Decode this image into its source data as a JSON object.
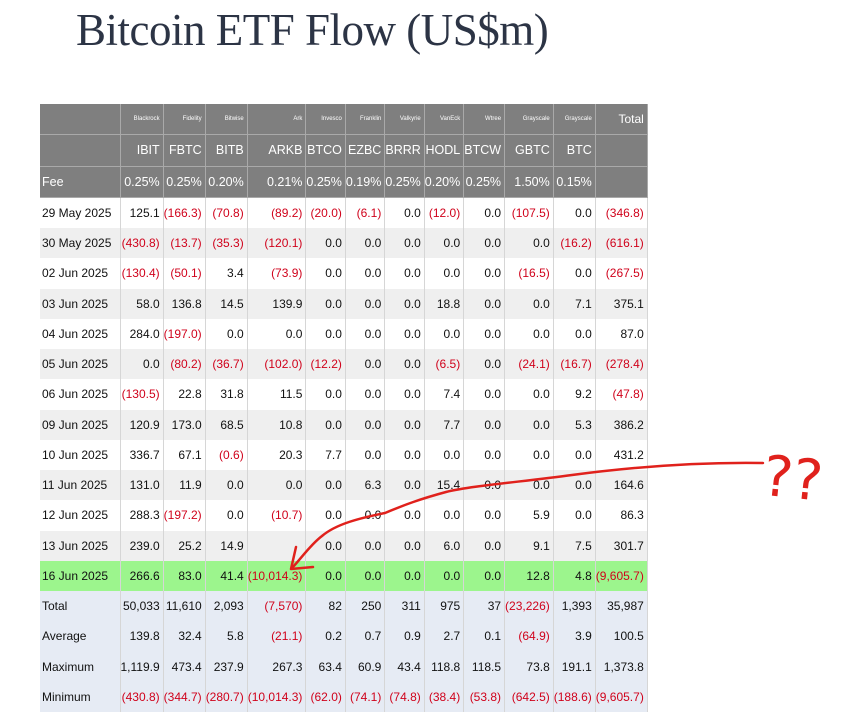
{
  "title": "Bitcoin ETF Flow (US$m)",
  "issuers": [
    "Blackrock",
    "Fidelity",
    "Bitwise",
    "Ark",
    "Invesco",
    "Franklin",
    "Valkyrie",
    "VanEck",
    "Wtree",
    "Grayscale",
    "Grayscale"
  ],
  "total_label": "Total",
  "tickers": [
    "IBIT",
    "FBTC",
    "BITB",
    "ARKB",
    "BTCO",
    "EZBC",
    "BRRR",
    "HODL",
    "BTCW",
    "GBTC",
    "BTC"
  ],
  "fee_label": "Fee",
  "fees": [
    "0.25%",
    "0.25%",
    "0.20%",
    "0.21%",
    "0.25%",
    "0.19%",
    "0.25%",
    "0.20%",
    "0.25%",
    "1.50%",
    "0.15%"
  ],
  "rows": [
    {
      "date": "29 May 2025",
      "values": [
        "125.1",
        "(166.3)",
        "(70.8)",
        "(89.2)",
        "(20.0)",
        "(6.1)",
        "0.0",
        "(12.0)",
        "0.0",
        "(107.5)",
        "0.0"
      ],
      "total": "(346.8)"
    },
    {
      "date": "30 May 2025",
      "values": [
        "(430.8)",
        "(13.7)",
        "(35.3)",
        "(120.1)",
        "0.0",
        "0.0",
        "0.0",
        "0.0",
        "0.0",
        "0.0",
        "(16.2)"
      ],
      "total": "(616.1)"
    },
    {
      "date": "02 Jun 2025",
      "values": [
        "(130.4)",
        "(50.1)",
        "3.4",
        "(73.9)",
        "0.0",
        "0.0",
        "0.0",
        "0.0",
        "0.0",
        "(16.5)",
        "0.0"
      ],
      "total": "(267.5)"
    },
    {
      "date": "03 Jun 2025",
      "values": [
        "58.0",
        "136.8",
        "14.5",
        "139.9",
        "0.0",
        "0.0",
        "0.0",
        "18.8",
        "0.0",
        "0.0",
        "7.1"
      ],
      "total": "375.1"
    },
    {
      "date": "04 Jun 2025",
      "values": [
        "284.0",
        "(197.0)",
        "0.0",
        "0.0",
        "0.0",
        "0.0",
        "0.0",
        "0.0",
        "0.0",
        "0.0",
        "0.0"
      ],
      "total": "87.0"
    },
    {
      "date": "05 Jun 2025",
      "values": [
        "0.0",
        "(80.2)",
        "(36.7)",
        "(102.0)",
        "(12.2)",
        "0.0",
        "0.0",
        "(6.5)",
        "0.0",
        "(24.1)",
        "(16.7)"
      ],
      "total": "(278.4)"
    },
    {
      "date": "06 Jun 2025",
      "values": [
        "(130.5)",
        "22.8",
        "31.8",
        "11.5",
        "0.0",
        "0.0",
        "0.0",
        "7.4",
        "0.0",
        "0.0",
        "9.2"
      ],
      "total": "(47.8)"
    },
    {
      "date": "09 Jun 2025",
      "values": [
        "120.9",
        "173.0",
        "68.5",
        "10.8",
        "0.0",
        "0.0",
        "0.0",
        "7.7",
        "0.0",
        "0.0",
        "5.3"
      ],
      "total": "386.2"
    },
    {
      "date": "10 Jun 2025",
      "values": [
        "336.7",
        "67.1",
        "(0.6)",
        "20.3",
        "7.7",
        "0.0",
        "0.0",
        "0.0",
        "0.0",
        "0.0",
        "0.0"
      ],
      "total": "431.2"
    },
    {
      "date": "11 Jun 2025",
      "values": [
        "131.0",
        "11.9",
        "0.0",
        "0.0",
        "0.0",
        "6.3",
        "0.0",
        "15.4",
        "0.0",
        "0.0",
        "0.0"
      ],
      "total": "164.6"
    },
    {
      "date": "12 Jun 2025",
      "values": [
        "288.3",
        "(197.2)",
        "0.0",
        "(10.7)",
        "0.0",
        "0.0",
        "0.0",
        "0.0",
        "0.0",
        "5.9",
        "0.0"
      ],
      "total": "86.3"
    },
    {
      "date": "13 Jun 2025",
      "values": [
        "239.0",
        "25.2",
        "14.9",
        "",
        "0.0",
        "0.0",
        "0.0",
        "6.0",
        "0.0",
        "9.1",
        "7.5"
      ],
      "total": "301.7"
    },
    {
      "date": "16 Jun 2025",
      "values": [
        "266.6",
        "83.0",
        "41.4",
        "(10,014.3)",
        "0.0",
        "0.0",
        "0.0",
        "0.0",
        "0.0",
        "12.8",
        "4.8"
      ],
      "total": "(9,605.7)",
      "highlight": true
    }
  ],
  "summary": [
    {
      "label": "Total",
      "values": [
        "50,033",
        "11,610",
        "2,093",
        "(7,570)",
        "82",
        "250",
        "311",
        "975",
        "37",
        "(23,226)",
        "1,393"
      ],
      "total": "35,987"
    },
    {
      "label": "Average",
      "values": [
        "139.8",
        "32.4",
        "5.8",
        "(21.1)",
        "0.2",
        "0.7",
        "0.9",
        "2.7",
        "0.1",
        "(64.9)",
        "3.9"
      ],
      "total": "100.5"
    },
    {
      "label": "Maximum",
      "values": [
        "1,119.9",
        "473.4",
        "237.9",
        "267.3",
        "63.4",
        "60.9",
        "43.4",
        "118.8",
        "118.5",
        "73.8",
        "191.1"
      ],
      "total": "1,373.8"
    },
    {
      "label": "Minimum",
      "values": [
        "(430.8)",
        "(344.7)",
        "(280.7)",
        "(10,014.3)",
        "(62.0)",
        "(74.1)",
        "(74.8)",
        "(38.4)",
        "(53.8)",
        "(642.5)",
        "(188.6)"
      ],
      "total": "(9,605.7)"
    }
  ],
  "annotation_text": "??",
  "colors": {
    "header_bg": "#7f7f7f",
    "negative": "#d0021b",
    "highlight_row": "#9cf58d",
    "summary_bg": "#e6ebf4",
    "annotation": "#e0211c"
  }
}
